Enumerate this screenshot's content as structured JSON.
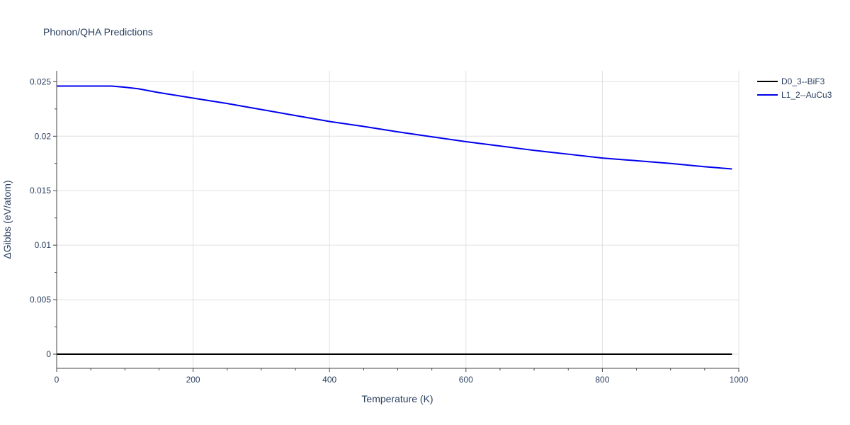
{
  "chart_data": {
    "type": "line",
    "title": "Phonon/QHA Predictions",
    "xlabel": "Temperature (K)",
    "ylabel": "ΔGibbs (eV/atom)",
    "xlim": [
      0,
      1000
    ],
    "ylim": [
      -0.0013,
      0.026
    ],
    "x_ticks": [
      0,
      200,
      400,
      600,
      800,
      1000
    ],
    "x_tick_labels": [
      "0",
      "200",
      "400",
      "600",
      "800",
      "1000"
    ],
    "y_ticks": [
      0,
      0.005,
      0.01,
      0.015,
      0.02,
      0.025
    ],
    "y_tick_labels": [
      "0",
      "0.005",
      "0.01",
      "0.015",
      "0.02",
      "0.025"
    ],
    "grid": true,
    "legend_position": "top-right",
    "series": [
      {
        "name": "D0_3--BiF3",
        "color": "#000000",
        "x": [
          0,
          990
        ],
        "y": [
          0,
          0
        ]
      },
      {
        "name": "L1_2--AuCu3",
        "color": "#0000ee",
        "x": [
          0,
          20,
          40,
          60,
          80,
          100,
          120,
          150,
          200,
          250,
          300,
          350,
          400,
          450,
          500,
          550,
          600,
          650,
          700,
          750,
          800,
          850,
          900,
          950,
          990
        ],
        "y": [
          0.0246,
          0.0246,
          0.0246,
          0.0246,
          0.0246,
          0.0245,
          0.02435,
          0.024,
          0.0235,
          0.023,
          0.02245,
          0.0219,
          0.02135,
          0.0209,
          0.0204,
          0.01995,
          0.0195,
          0.0191,
          0.0187,
          0.01835,
          0.018,
          0.01775,
          0.0175,
          0.0172,
          0.017
        ]
      }
    ]
  }
}
